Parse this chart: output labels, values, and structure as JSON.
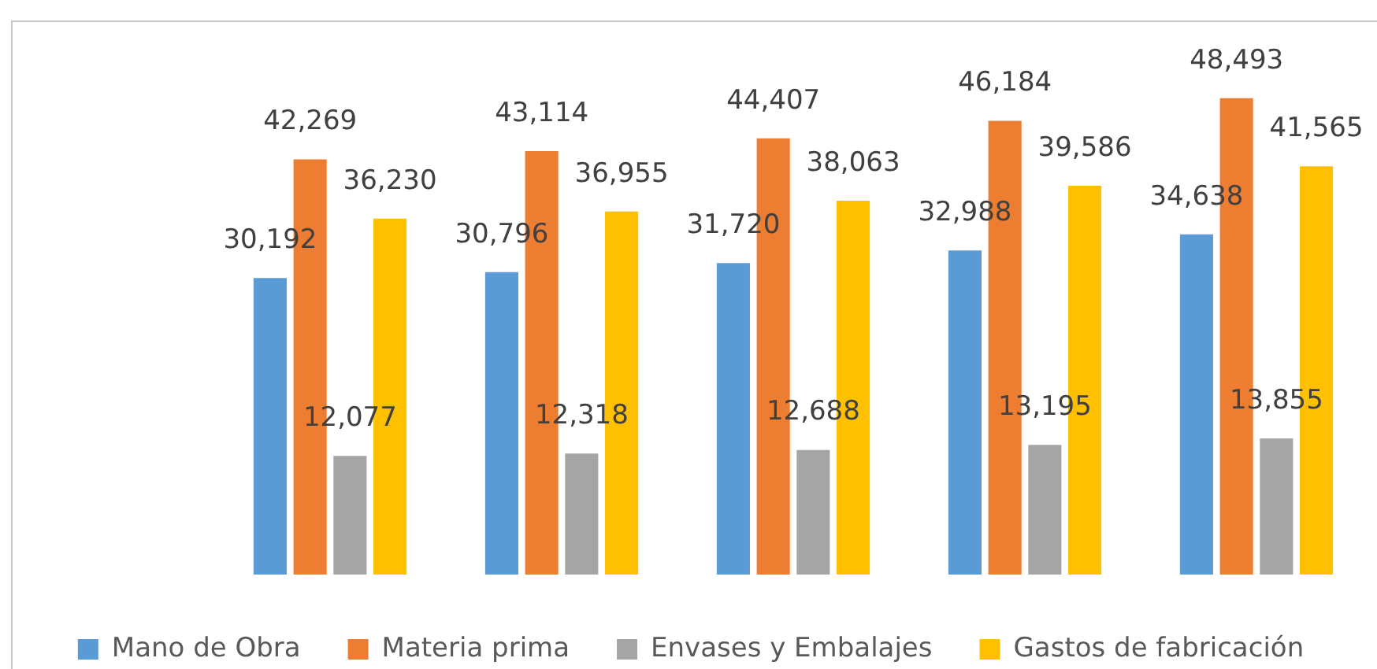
{
  "chart_data": {
    "type": "bar",
    "categories": [
      null,
      null,
      null,
      null,
      null
    ],
    "series": [
      {
        "name": "Mano de Obra",
        "color": "#5b9bd5",
        "values": [
          30192,
          30796,
          31720,
          32988,
          34638
        ],
        "value_labels": [
          "30,192",
          "30,796",
          "31,720",
          "32,988",
          "34,638"
        ]
      },
      {
        "name": "Materia prima",
        "color": "#ed7d31",
        "values": [
          42269,
          43114,
          44407,
          46184,
          48493
        ],
        "value_labels": [
          "42,269",
          "43,114",
          "44,407",
          "46,184",
          "48,493"
        ]
      },
      {
        "name": "Envases y Embalajes",
        "color": "#a5a5a5",
        "values": [
          12077,
          12318,
          12688,
          13195,
          13855
        ],
        "value_labels": [
          "12,077",
          "12,318",
          "12,688",
          "13,195",
          "13,855"
        ]
      },
      {
        "name": "Gastos de fabricación",
        "color": "#ffc000",
        "values": [
          36230,
          36955,
          38063,
          39586,
          41565
        ],
        "value_labels": [
          "36,230",
          "36,955",
          "38,063",
          "39,586",
          "41,565"
        ]
      }
    ],
    "legend": "bottom",
    "tick_labels": false
  }
}
